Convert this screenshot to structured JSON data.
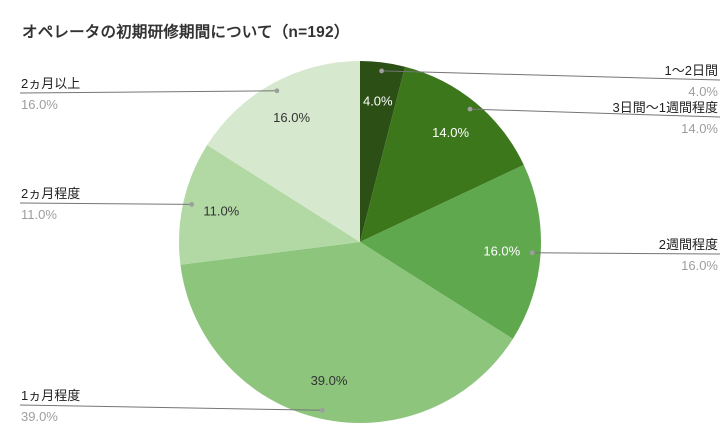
{
  "chart_data": {
    "type": "pie",
    "title": "オペレータの初期研修期間について（n=192）",
    "sample_size_label": "n=192",
    "categories": [
      "1～2日間",
      "3日間～1週間程度",
      "2週間程度",
      "1ヵ月程度",
      "2ヵ月程度",
      "2ヵ月以上"
    ],
    "values": [
      4.0,
      14.0,
      16.0,
      39.0,
      11.0,
      16.0
    ],
    "value_labels": [
      "4.0%",
      "14.0%",
      "16.0%",
      "39.0%",
      "11.0%",
      "16.0%"
    ],
    "colors": [
      "#2b4f15",
      "#3d771c",
      "#5fa84e",
      "#8dc57d",
      "#b2d8a4",
      "#d6e8cd"
    ],
    "slice_label_colors": [
      "#ffffff",
      "#ffffff",
      "#ffffff",
      "#333333",
      "#333333",
      "#333333"
    ],
    "category_label_color": "#212121",
    "percent_label_color": "#9e9e9e",
    "leader_line_color": "#757575",
    "leader_dot_color": "#9e9e9e",
    "background": "#ffffff",
    "start_angle": 0,
    "direction": "clockwise",
    "legend": "none",
    "labels_position": "outside-with-leader-lines"
  }
}
